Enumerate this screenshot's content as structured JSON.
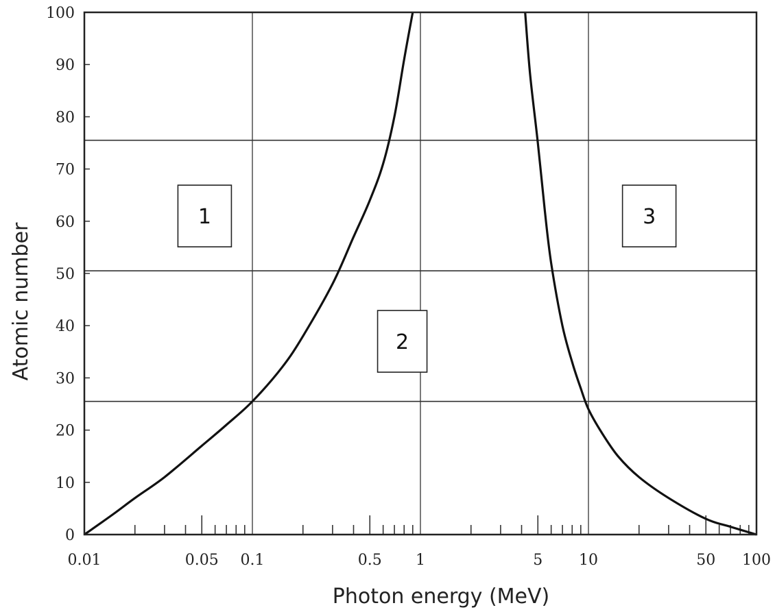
{
  "chart_data": {
    "type": "line",
    "xlabel": "Photon energy (MeV)",
    "ylabel": "Atomic number",
    "xscale": "log",
    "xlim": [
      0.01,
      100
    ],
    "ylim": [
      0,
      100
    ],
    "x_tick_labels": [
      {
        "value": 0.01,
        "label": "0.01"
      },
      {
        "value": 0.05,
        "label": "0.05"
      },
      {
        "value": 0.1,
        "label": "0.1"
      },
      {
        "value": 0.5,
        "label": "0.5"
      },
      {
        "value": 1,
        "label": "1"
      },
      {
        "value": 5,
        "label": "5"
      },
      {
        "value": 10,
        "label": "10"
      },
      {
        "value": 50,
        "label": "50"
      },
      {
        "value": 100,
        "label": "100"
      }
    ],
    "y_ticks": [
      0,
      10,
      20,
      30,
      40,
      50,
      60,
      70,
      80,
      90,
      100
    ],
    "vertical_gridlines": [
      0.1,
      1,
      10
    ],
    "horizontal_gridlines": [
      25.5,
      50.5,
      75.5
    ],
    "grid": true,
    "series": [
      {
        "x": [
          0.01,
          0.015,
          0.02,
          0.03,
          0.05,
          0.07,
          0.1,
          0.15,
          0.2,
          0.3,
          0.4,
          0.5,
          0.6,
          0.7,
          0.8,
          0.9
        ],
        "y": [
          0,
          4,
          7,
          11,
          17,
          21,
          25.5,
          32,
          38,
          48,
          57,
          64,
          71,
          80,
          91,
          100
        ]
      },
      {
        "x": [
          4.2,
          4.5,
          5,
          5.5,
          6,
          7,
          8,
          9,
          10,
          12,
          15,
          20,
          30,
          50,
          70,
          100
        ],
        "y": [
          100,
          88,
          75,
          62,
          52,
          40,
          33,
          28,
          24,
          19.5,
          15,
          11,
          7,
          3,
          1.5,
          0
        ]
      }
    ],
    "annotations": [
      {
        "text": "1",
        "x": 0.052,
        "y": 61
      },
      {
        "text": "2",
        "x": 0.78,
        "y": 37
      },
      {
        "text": "3",
        "x": 23,
        "y": 61
      }
    ]
  }
}
